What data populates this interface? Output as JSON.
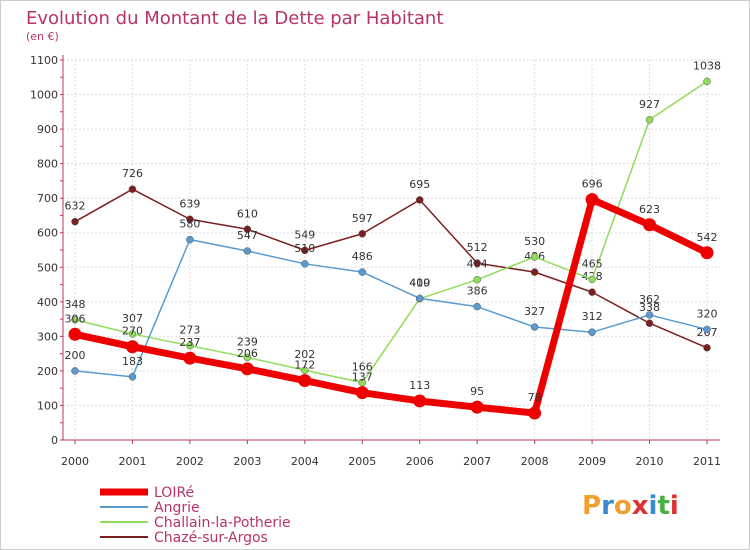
{
  "title": "Evolution du Montant de la Dette par Habitant",
  "subtitle": "(en €)",
  "brand": {
    "text": "Proxiti",
    "colors": [
      "#f0a030",
      "#3a8ad0",
      "#f0a030",
      "#e03030",
      "#3a8ad0",
      "#4ab040",
      "#e03030"
    ]
  },
  "chart_data": {
    "type": "line",
    "categories": [
      "2000",
      "2001",
      "2002",
      "2003",
      "2004",
      "2005",
      "2006",
      "2007",
      "2008",
      "2009",
      "2010",
      "2011"
    ],
    "ylim": [
      0,
      1100
    ],
    "yticks": [
      "0",
      "100",
      "200",
      "300",
      "400",
      "500",
      "600",
      "700",
      "800",
      "900",
      "1000",
      "1100"
    ],
    "grid": true,
    "legend_position": "bottom-left",
    "series": [
      {
        "name": "Chazé-sur-Argos",
        "color": "#7a1f1f",
        "values": [
          632,
          726,
          639,
          610,
          549,
          597,
          695,
          512,
          486,
          428,
          338,
          267
        ],
        "labels": [
          "632",
          "726",
          "639",
          "610",
          "549",
          "597",
          "695",
          "512",
          "486",
          "428",
          "338",
          "267"
        ]
      },
      {
        "name": "Challain-la-Potherie",
        "color": "#8fdc5a",
        "values": [
          348,
          307,
          273,
          239,
          202,
          166,
          409,
          464,
          530,
          465,
          927,
          1038
        ],
        "labels": [
          "348",
          "307",
          "273",
          "239",
          "202",
          "166",
          "409",
          "464",
          "530",
          "465",
          "927",
          "1038"
        ]
      },
      {
        "name": "Angrie",
        "color": "#5a9ad0",
        "values": [
          200,
          183,
          580,
          547,
          510,
          486,
          410,
          386,
          327,
          312,
          362,
          320
        ],
        "labels": [
          "200",
          "183",
          "580",
          "547",
          "510",
          "486",
          "410",
          "386",
          "327",
          "312",
          "362",
          "320"
        ]
      },
      {
        "name": "LOIRé",
        "color": "#ee0000",
        "values": [
          306,
          270,
          237,
          206,
          172,
          137,
          113,
          95,
          78,
          696,
          623,
          542
        ],
        "labels": [
          "306",
          "270",
          "237",
          "206",
          "172",
          "137",
          "113",
          "95",
          "78",
          "696",
          "623",
          "542"
        ]
      }
    ]
  }
}
